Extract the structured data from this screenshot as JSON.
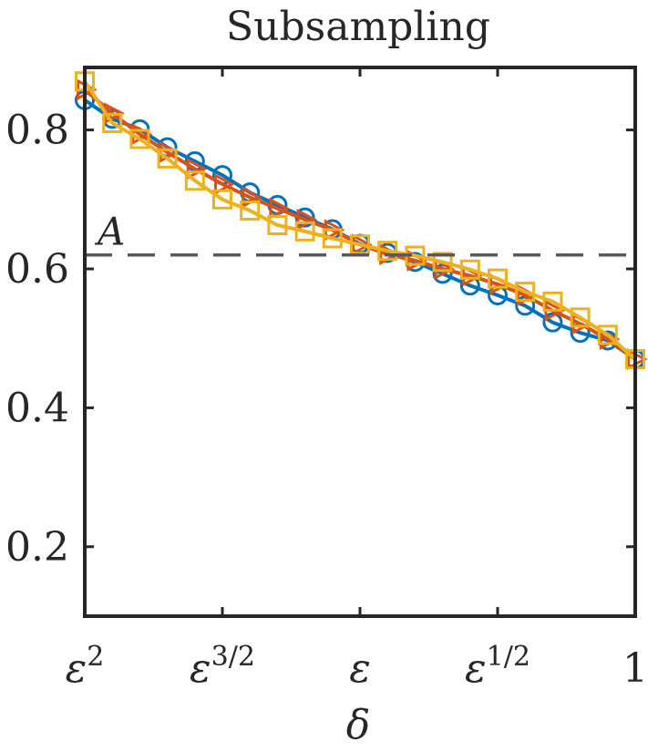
{
  "chart_data": {
    "type": "line",
    "title": "Subsampling",
    "xlabel": "δ",
    "ylabel": "",
    "x_scale": "log",
    "xlim": [
      0,
      1
    ],
    "ylim": [
      0.1,
      0.89
    ],
    "x_ticks": [
      {
        "pos": 0,
        "base": "ε",
        "exp": "2"
      },
      {
        "pos": 0.25,
        "base": "ε",
        "exp": "3/2"
      },
      {
        "pos": 0.5,
        "base": "ε",
        "exp": ""
      },
      {
        "pos": 0.75,
        "base": "ε",
        "exp": "1/2"
      },
      {
        "pos": 1,
        "base": "1",
        "exp": ""
      }
    ],
    "y_ticks": [
      "0.2",
      "0.4",
      "0.6",
      "0.8"
    ],
    "y_tick_values": [
      0.2,
      0.4,
      0.6,
      0.8
    ],
    "reference_line": {
      "label": "A",
      "y": 0.62,
      "style": "dashed",
      "color": "#595959"
    },
    "grid": false,
    "x_note": "x positions are fractions of the log-scale distance from ε^2 (0) to 1 (1)",
    "series": [
      {
        "marker": "circle",
        "color": "#0072BD",
        "x": [
          0,
          0.05,
          0.1,
          0.15,
          0.2,
          0.25,
          0.3,
          0.35,
          0.4,
          0.45,
          0.5,
          0.55,
          0.6,
          0.65,
          0.7,
          0.75,
          0.8,
          0.85,
          0.9,
          0.95,
          1
        ],
        "values": [
          0.843,
          0.816,
          0.801,
          0.775,
          0.755,
          0.735,
          0.71,
          0.692,
          0.674,
          0.657,
          0.636,
          0.623,
          0.61,
          0.593,
          0.576,
          0.562,
          0.547,
          0.523,
          0.508,
          0.497,
          0.47
        ]
      },
      {
        "marker": "triangle-right",
        "color": "#D95319",
        "x": [
          0,
          0.05,
          0.1,
          0.15,
          0.2,
          0.25,
          0.3,
          0.35,
          0.4,
          0.45,
          0.5,
          0.55,
          0.6,
          0.65,
          0.7,
          0.75,
          0.8,
          0.85,
          0.9,
          0.95,
          1
        ],
        "values": [
          0.858,
          0.824,
          0.794,
          0.768,
          0.744,
          0.722,
          0.703,
          0.687,
          0.671,
          0.656,
          0.635,
          0.621,
          0.612,
          0.6,
          0.59,
          0.578,
          0.562,
          0.54,
          0.521,
          0.499,
          0.47
        ]
      },
      {
        "marker": "square",
        "color": "#EDB120",
        "x": [
          0,
          0.05,
          0.1,
          0.15,
          0.2,
          0.25,
          0.3,
          0.35,
          0.4,
          0.45,
          0.5,
          0.55,
          0.6,
          0.65,
          0.7,
          0.75,
          0.8,
          0.85,
          0.9,
          0.95,
          1
        ],
        "values": [
          0.87,
          0.81,
          0.787,
          0.759,
          0.727,
          0.7,
          0.684,
          0.663,
          0.654,
          0.644,
          0.635,
          0.626,
          0.619,
          0.61,
          0.599,
          0.586,
          0.567,
          0.553,
          0.53,
          0.505,
          0.47
        ]
      }
    ]
  }
}
